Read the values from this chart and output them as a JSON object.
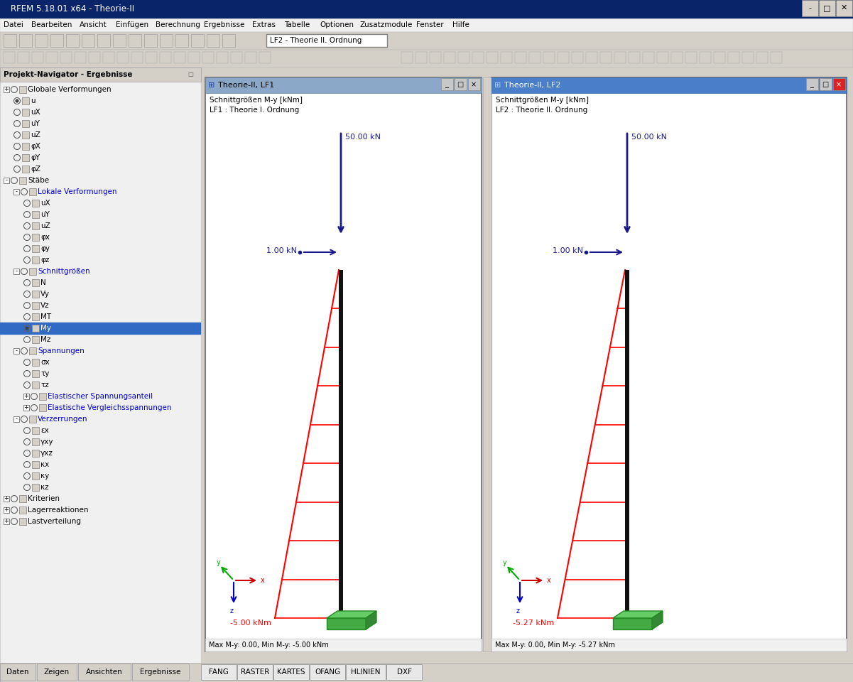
{
  "title": "RFEM 5.18.01 x64 - Theorie-II",
  "bg_color": "#d4d0c8",
  "window_bg": "#ffffff",
  "menu_items": [
    "Datei",
    "Bearbeiten",
    "Ansicht",
    "Einfügen",
    "Berechnung",
    "Ergebnisse",
    "Extras",
    "Tabelle",
    "Optionen",
    "Zusatzmodule",
    "Fenster",
    "Hilfe"
  ],
  "lf_label": "LF2 - Theorie II. Ordnung",
  "nav_title": "Projekt-Navigator - Ergebnisse",
  "bottom_tabs": [
    "FANG",
    "RASTER",
    "KARTES",
    "OFANG",
    "HLINIEN",
    "DXF"
  ],
  "win1_title": "Theorie-II, LF1",
  "win2_title": "Theorie-II, LF2",
  "win1_subtitle1": "Schnittgrößen M-y [kNm]",
  "win1_subtitle2": "LF1 : Theorie I. Ordnung",
  "win2_subtitle1": "Schnittgrößen M-y [kNm]",
  "win2_subtitle2": "LF2 : Theorie II. Ordnung",
  "win1_status": "Max M-y: 0.00, Min M-y: -5.00 kNm",
  "win2_status": "Max M-y: 0.00, Min M-y: -5.27 kNm",
  "force_label1": "50.00 kN",
  "force_label2": "50.00 kN",
  "horiz_force_label1": "1.00 kN",
  "horiz_force_label2": "1.00 kN",
  "moment_label1": "-5.00 kNm",
  "moment_label2": "-5.27 kNm",
  "beam_color": "#111111",
  "moment_diagram_color": "#ff0000",
  "force_arrow_color": "#1a1a8c",
  "titlebar_active_bg": "#a8c4e0",
  "titlebar_inactive_bg": "#c8d8e8",
  "win2_close_color": "#cc2222",
  "nav_bg": "#f0f0f0",
  "toolbar_bg": "#d4d0c8",
  "content_bg": "#ffffff"
}
